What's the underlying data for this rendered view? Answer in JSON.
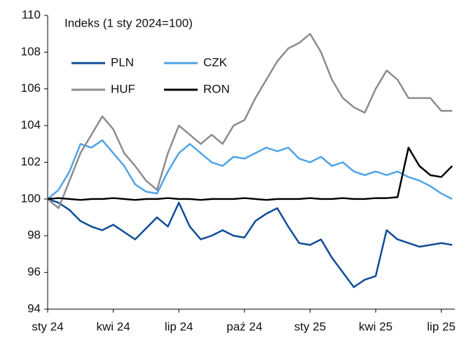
{
  "chart_data": {
    "type": "line",
    "title": "Indeks (1 sty 2024=100)",
    "categories": [
      "sty 24",
      null,
      null,
      null,
      null,
      null,
      "kwi 24",
      null,
      null,
      null,
      null,
      null,
      "lip 24",
      null,
      null,
      null,
      null,
      null,
      "paź 24",
      null,
      null,
      null,
      null,
      null,
      "sty 25",
      null,
      null,
      null,
      null,
      null,
      "kwi 25",
      null,
      null,
      null,
      null,
      null,
      "lip 25",
      null
    ],
    "series": [
      {
        "name": "PLN",
        "color": "#0f4c97",
        "values": [
          100,
          99.8,
          99.4,
          98.8,
          98.5,
          98.3,
          98.6,
          98.2,
          97.8,
          98.4,
          99.0,
          98.5,
          99.8,
          98.5,
          97.8,
          98.0,
          98.3,
          98.0,
          97.9,
          98.8,
          99.2,
          99.5,
          98.5,
          97.6,
          97.5,
          97.8,
          96.8,
          96.0,
          95.2,
          95.6,
          95.8,
          98.3,
          97.8,
          97.6,
          97.4,
          97.5,
          97.6,
          97.5
        ]
      },
      {
        "name": "CZK",
        "color": "#4fa3e6",
        "values": [
          100,
          100.5,
          101.5,
          103,
          102.8,
          103.2,
          102.5,
          101.8,
          100.8,
          100.4,
          100.3,
          101.5,
          102.5,
          103,
          102.5,
          102,
          101.8,
          102.3,
          102.2,
          102.5,
          102.8,
          102.6,
          102.8,
          102.2,
          102,
          102.3,
          101.8,
          102,
          101.5,
          101.3,
          101.5,
          101.3,
          101.5,
          101.2,
          101,
          100.7,
          100.3,
          100
        ]
      },
      {
        "name": "HUF",
        "color": "#8c8c8c",
        "values": [
          100,
          99.5,
          101,
          102.5,
          103.5,
          104.5,
          103.8,
          102.5,
          101.8,
          101,
          100.5,
          102.5,
          104,
          103.5,
          103,
          103.5,
          103,
          104,
          104.3,
          105.5,
          106.5,
          107.5,
          108.2,
          108.5,
          109,
          108,
          106.5,
          105.5,
          105,
          104.7,
          106,
          107,
          106.5,
          105.5,
          105.5,
          105.5,
          104.8,
          104.8
        ]
      },
      {
        "name": "RON",
        "color": "#000000",
        "values": [
          100,
          100.05,
          100,
          99.95,
          100,
          100,
          100.05,
          100,
          99.95,
          100,
          100,
          100.05,
          100,
          100,
          99.95,
          100,
          100,
          100,
          100.05,
          100,
          99.95,
          100,
          100,
          100,
          100.05,
          100,
          100,
          100.05,
          100,
          100,
          100.05,
          100.05,
          100.1,
          102.8,
          101.8,
          101.3,
          101.2,
          101.8
        ]
      }
    ],
    "ylim": [
      94,
      110
    ],
    "yticks": [
      94,
      96,
      98,
      100,
      102,
      104,
      106,
      108,
      110
    ],
    "grid": false
  }
}
